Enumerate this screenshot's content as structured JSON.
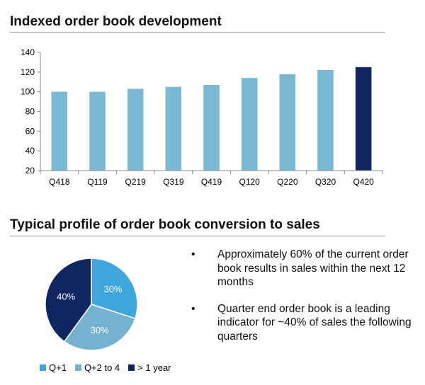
{
  "titles": {
    "top": "Indexed order book development",
    "bottom": "Typical profile of order book conversion to sales"
  },
  "chart_data": [
    {
      "type": "bar",
      "title": "Indexed order book development",
      "categories": [
        "Q418",
        "Q119",
        "Q219",
        "Q319",
        "Q419",
        "Q120",
        "Q220",
        "Q320",
        "Q420"
      ],
      "values": [
        100,
        100,
        103,
        105,
        107,
        114,
        118,
        122,
        125
      ],
      "ylim": [
        20,
        140
      ],
      "yticks": [
        20,
        40,
        60,
        80,
        100,
        120,
        140
      ],
      "colors": {
        "default": "#79b9d3",
        "highlight": "#0f2663"
      },
      "highlight_index": 8,
      "grid": false
    },
    {
      "type": "pie",
      "labels": [
        "Q+1",
        "Q+2 to 4",
        "> 1 year"
      ],
      "values": [
        30,
        30,
        40
      ],
      "value_labels": [
        "30%",
        "30%",
        "40%"
      ],
      "colors": [
        "#3ea6db",
        "#74b2cf",
        "#0f2663"
      ],
      "legend": "bottom"
    }
  ],
  "bullets": [
    "Approximately 60% of the current order book results in sales within the next 12 months",
    "Quarter end order book is a leading indicator for ~40% of sales the following quarters"
  ],
  "bullet_glyph": "•"
}
